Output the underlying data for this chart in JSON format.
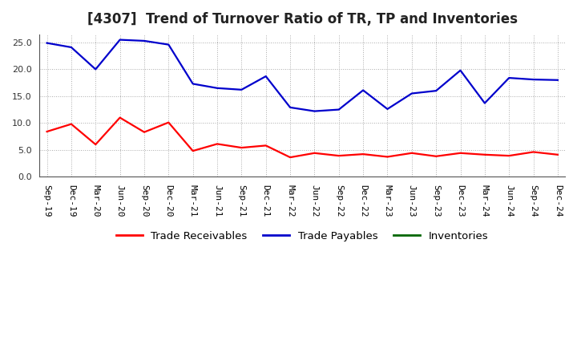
{
  "title": "[4307]  Trend of Turnover Ratio of TR, TP and Inventories",
  "x_labels": [
    "Sep-19",
    "Dec-19",
    "Mar-20",
    "Jun-20",
    "Sep-20",
    "Dec-20",
    "Mar-21",
    "Jun-21",
    "Sep-21",
    "Dec-21",
    "Mar-22",
    "Jun-22",
    "Sep-22",
    "Dec-22",
    "Mar-23",
    "Jun-23",
    "Sep-23",
    "Dec-23",
    "Mar-24",
    "Jun-24",
    "Sep-24",
    "Dec-24"
  ],
  "trade_receivables": [
    8.4,
    9.8,
    6.0,
    11.0,
    8.3,
    10.1,
    4.8,
    6.1,
    5.4,
    5.8,
    3.6,
    4.4,
    3.9,
    4.2,
    3.7,
    4.4,
    3.8,
    4.4,
    4.1,
    3.9,
    4.6,
    4.1
  ],
  "trade_payables": [
    24.9,
    24.1,
    20.0,
    25.5,
    25.3,
    24.6,
    17.3,
    16.5,
    16.2,
    18.7,
    12.9,
    12.2,
    12.5,
    16.1,
    12.6,
    15.5,
    16.0,
    19.8,
    13.7,
    18.4,
    18.1,
    18.0
  ],
  "inventories": [
    null,
    null,
    null,
    null,
    null,
    null,
    null,
    null,
    null,
    null,
    null,
    null,
    null,
    null,
    null,
    null,
    null,
    null,
    null,
    null,
    null,
    null
  ],
  "tr_color": "#ff0000",
  "tp_color": "#0000cc",
  "inv_color": "#006600",
  "ylim": [
    0.0,
    26.5
  ],
  "yticks": [
    0.0,
    5.0,
    10.0,
    15.0,
    20.0,
    25.0
  ],
  "bg_color": "#ffffff",
  "grid_color": "#aaaaaa",
  "title_fontsize": 12,
  "legend_fontsize": 9.5,
  "tick_fontsize": 8
}
